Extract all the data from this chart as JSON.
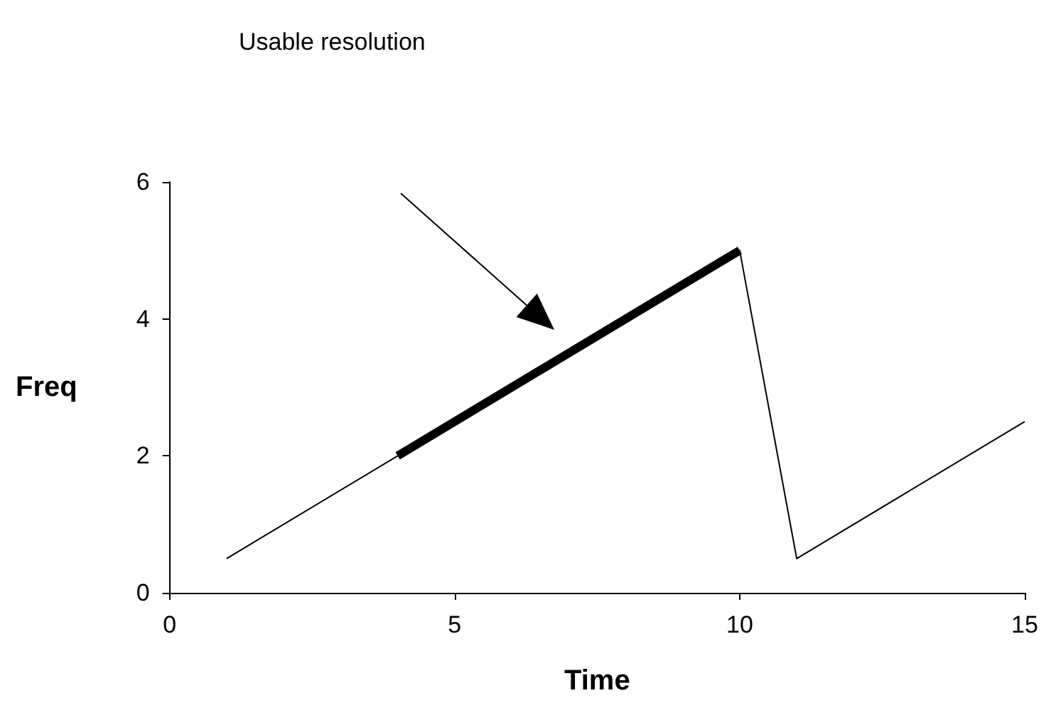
{
  "chart_data": {
    "type": "line",
    "xlabel": "Time",
    "ylabel": "Freq",
    "annotations": [
      "Usable resolution"
    ],
    "series": [
      {
        "color": "#000000",
        "x": [
          1,
          4,
          10,
          11,
          15
        ],
        "values": [
          0.5,
          2,
          5,
          0.5,
          2.5
        ]
      },
      {
        "color": "#000000",
        "x": [
          4,
          10
        ],
        "values": [
          2,
          5
        ]
      }
    ],
    "xlim": [
      0,
      15
    ],
    "xticks": [
      0,
      5,
      10,
      15
    ],
    "ylim": [
      0,
      6
    ],
    "yticks": [
      0,
      2,
      4,
      6
    ],
    "grid": false,
    "marker": "none",
    "line_style": "solid"
  }
}
